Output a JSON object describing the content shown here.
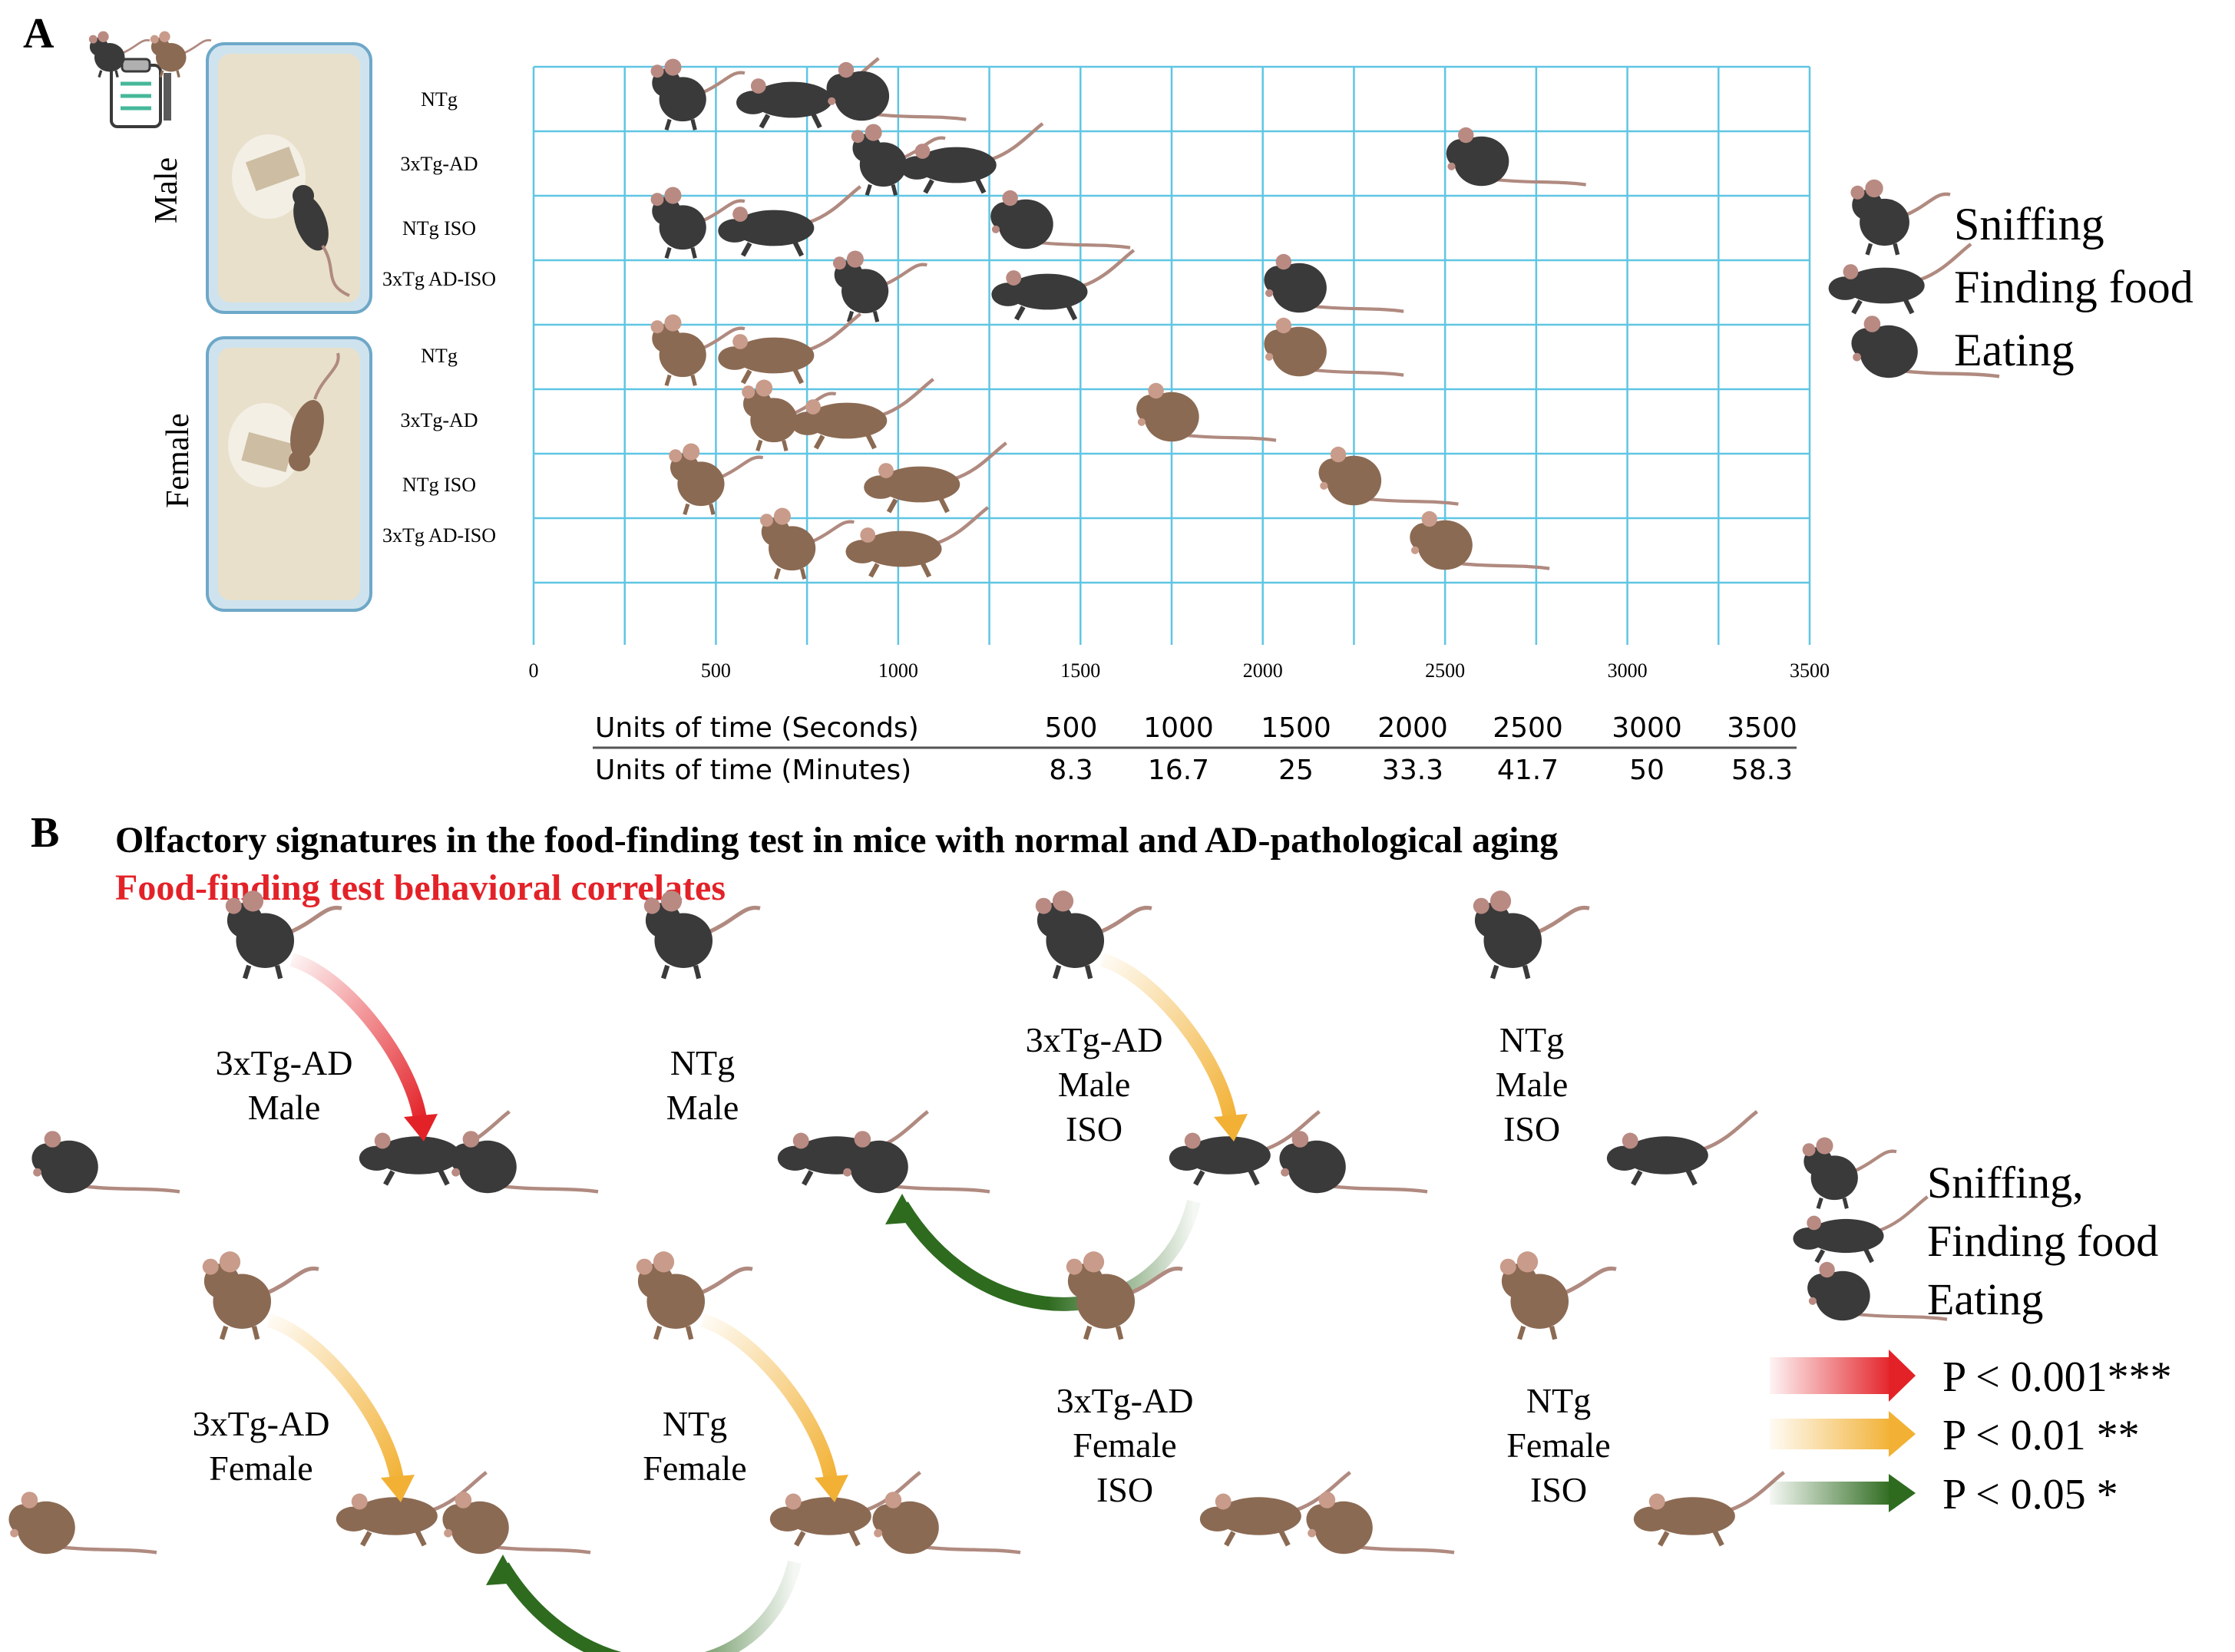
{
  "panel_a": {
    "letter": "A",
    "sex_labels": [
      "Male",
      "Female"
    ],
    "row_labels": [
      "NTg",
      "3xTg-AD",
      "NTg ISO",
      "3xTg AD-ISO",
      "NTg",
      "3xTg-AD",
      "NTg ISO",
      "3xTg AD-ISO"
    ],
    "x_ticks": [
      "0",
      "500",
      "1000",
      "1500",
      "2000",
      "2500",
      "3000",
      "3500"
    ],
    "legend": [
      "Sniffing",
      "Finding food",
      "Eating"
    ],
    "conversion": {
      "row1_label": "Units of time (Seconds)",
      "row2_label": "Units of time (Minutes)",
      "seconds": [
        "500",
        "1000",
        "1500",
        "2000",
        "2500",
        "3000",
        "3500"
      ],
      "minutes": [
        "8.3",
        "16.7",
        "25",
        "33.3",
        "41.7",
        "50",
        "58.3"
      ]
    },
    "colors": {
      "grid": "#5fc6e3",
      "male_mouse": "#3a3a3a",
      "female_mouse": "#8b6a53"
    },
    "events": [
      {
        "row": 0,
        "sniffing": 400,
        "finding": 700,
        "eating": 900
      },
      {
        "row": 1,
        "sniffing": 950,
        "finding": 1150,
        "eating": 2600
      },
      {
        "row": 2,
        "sniffing": 400,
        "finding": 650,
        "eating": 1350
      },
      {
        "row": 3,
        "sniffing": 900,
        "finding": 1400,
        "eating": 2100
      },
      {
        "row": 4,
        "sniffing": 400,
        "finding": 650,
        "eating": 2100
      },
      {
        "row": 5,
        "sniffing": 650,
        "finding": 850,
        "eating": 1750
      },
      {
        "row": 6,
        "sniffing": 450,
        "finding": 1050,
        "eating": 2250
      },
      {
        "row": 7,
        "sniffing": 700,
        "finding": 1000,
        "eating": 2500
      }
    ]
  },
  "panel_b": {
    "letter": "B",
    "title": "Olfactory signatures in the food-finding test in mice with normal and AD-pathological aging",
    "subtitle": "Food-finding test behavioral correlates",
    "subtitle_color": "#e32228",
    "groups": [
      {
        "lines": [
          "3xTg-AD",
          "Male"
        ],
        "sex": "male",
        "arrows": [
          "red"
        ]
      },
      {
        "lines": [
          "NTg",
          "Male"
        ],
        "sex": "male",
        "arrows": []
      },
      {
        "lines": [
          "3xTg-AD",
          "Male",
          "ISO"
        ],
        "sex": "male",
        "arrows": [
          "orange",
          "green"
        ]
      },
      {
        "lines": [
          "NTg",
          "Male",
          "ISO"
        ],
        "sex": "male",
        "arrows": []
      },
      {
        "lines": [
          "3xTg-AD",
          "Female"
        ],
        "sex": "female",
        "arrows": [
          "orange"
        ]
      },
      {
        "lines": [
          "NTg",
          "Female"
        ],
        "sex": "female",
        "arrows": [
          "orange",
          "green"
        ]
      },
      {
        "lines": [
          "3xTg-AD",
          "Female",
          "ISO"
        ],
        "sex": "female",
        "arrows": []
      },
      {
        "lines": [
          "NTg",
          "Female",
          "ISO"
        ],
        "sex": "female",
        "arrows": []
      }
    ],
    "legend": [
      "Sniffing,",
      "Finding food",
      "Eating"
    ],
    "significance": [
      {
        "label": "P < 0.001***",
        "color": "#e32228"
      },
      {
        "label": "P < 0.01 **",
        "color": "#f2b134"
      },
      {
        "label": "P < 0.05 *",
        "color": "#2e6b1f"
      }
    ]
  }
}
